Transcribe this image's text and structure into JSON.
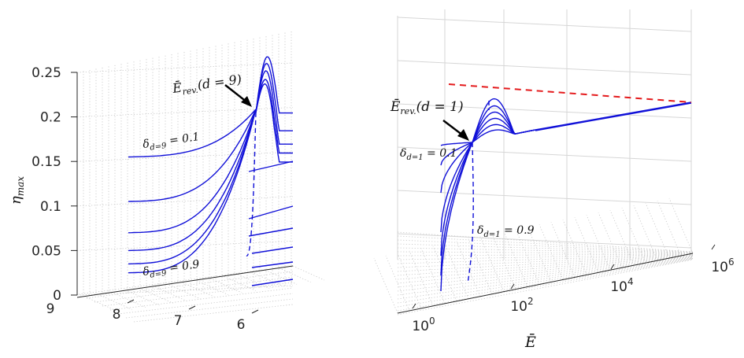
{
  "chart_data": [
    {
      "type": "line",
      "panel": "left",
      "view": "3-D surface curves, viewed nearly along E-bar axis",
      "ylabel": "η_max",
      "zlim": [
        0,
        0.25
      ],
      "z_ticks": [
        "0",
        "0.05",
        "0.1",
        "0.15",
        "0.2",
        "0.25"
      ],
      "d_axis_ticks": [
        "9",
        "8",
        "7",
        "6"
      ],
      "delta_values": [
        0.1,
        0.2,
        0.3,
        0.4,
        0.5,
        0.6,
        0.7,
        0.8,
        0.9
      ],
      "annotations": {
        "delta_top": "δ_{d=9} = 0.1",
        "delta_bottom": "δ_{d=9} = 0.9",
        "arrow_label": "Ē_rev.(d = 9)"
      },
      "crossing_eta": 0.205,
      "peak_eta": [
        0.27,
        0.255,
        0.24,
        0.225,
        0.215
      ],
      "plateau_eta": [
        0.2,
        0.18,
        0.165,
        0.155,
        0.145
      ]
    },
    {
      "type": "line",
      "panel": "right",
      "view": "3-D surface curves, log E-bar axis",
      "xlabel": "Ē",
      "x_ticks": [
        "10^0",
        "10^2",
        "10^4",
        "10^6"
      ],
      "x_tick_base": "10",
      "x_tick_exponents": [
        "0",
        "2",
        "4",
        "6"
      ],
      "delta_values": [
        0.1,
        0.2,
        0.3,
        0.4,
        0.5,
        0.6,
        0.7,
        0.8,
        0.9
      ],
      "annotations": {
        "delta_top": "δ_{d=1} = 0.1",
        "delta_bottom": "δ_{d=1} = 0.9",
        "arrow_label": "Ē_rev.(d = 1)"
      },
      "reference_line": {
        "style": "dashed",
        "color": "#e41a1c"
      },
      "curve_color": "#1010d8"
    }
  ]
}
